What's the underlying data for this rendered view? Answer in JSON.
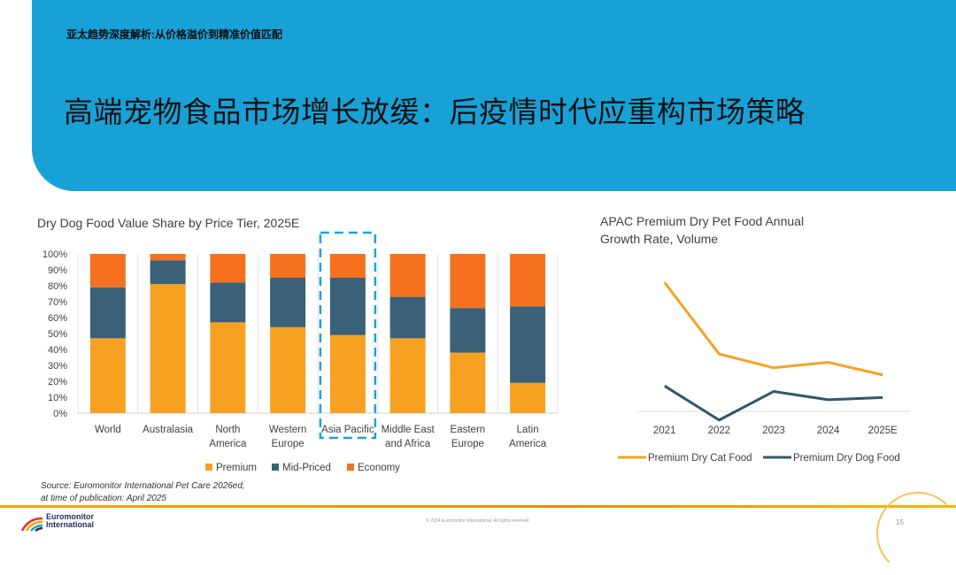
{
  "header": {
    "kicker": "亚太趋势深度解析:从价格溢价到精准价值匹配",
    "title": "高端宠物食品市场增长放缓：后疫情时代应重构市场策略"
  },
  "colors": {
    "premium": "#f7a123",
    "mid": "#3a6177",
    "economy": "#f5711f",
    "cat": "#f7a123",
    "dog": "#2f586c",
    "highlight": "#1ba3d4"
  },
  "chart_data": [
    {
      "type": "bar",
      "stacked": true,
      "title": "Dry Dog Food Value Share by Price Tier, 2025E",
      "categories": [
        [
          "World"
        ],
        [
          "Australasia"
        ],
        [
          "North",
          "America"
        ],
        [
          "Western",
          "Europe"
        ],
        [
          "Asia Pacific"
        ],
        [
          "Middle East",
          "and Africa"
        ],
        [
          "Eastern",
          "Europe"
        ],
        [
          "Latin",
          "America"
        ]
      ],
      "highlight_category": "Asia Pacific",
      "series": [
        {
          "name": "Premium",
          "values": [
            47,
            81,
            57,
            54,
            49,
            47,
            38,
            19
          ]
        },
        {
          "name": "Mid-Priced",
          "values": [
            32,
            15,
            25,
            31,
            36,
            26,
            28,
            48
          ]
        },
        {
          "name": "Economy",
          "values": [
            21,
            4,
            18,
            15,
            15,
            27,
            34,
            33
          ]
        }
      ],
      "ylim": [
        0,
        100
      ],
      "yticks": [
        "0%",
        "10%",
        "20%",
        "30%",
        "40%",
        "50%",
        "60%",
        "70%",
        "80%",
        "90%",
        "100%"
      ],
      "legend_position": "bottom"
    },
    {
      "type": "line",
      "title": [
        "APAC Premium Dry Pet Food Annual",
        "Growth Rate, Volume"
      ],
      "x": [
        "2021",
        "2022",
        "2023",
        "2024",
        "2025E"
      ],
      "series": [
        {
          "name": "Premium Dry Cat Food",
          "values": [
            19.5,
            6.5,
            4.0,
            5.0,
            2.7
          ]
        },
        {
          "name": "Premium Dry Dog Food",
          "values": [
            0.7,
            -5.5,
            -0.3,
            -1.8,
            -1.4
          ]
        }
      ],
      "ylim": [
        -6,
        21
      ],
      "legend_position": "bottom"
    }
  ],
  "source": [
    "Source: Euromonitor International Pet Care 2026ed,",
    "at time of publication: April 2025"
  ],
  "footer": {
    "copyright": "© 2024 Euromonitor International. All rights reserved.",
    "page": "15"
  },
  "logo": {
    "line1": "Euromonitor",
    "line2": "International"
  }
}
